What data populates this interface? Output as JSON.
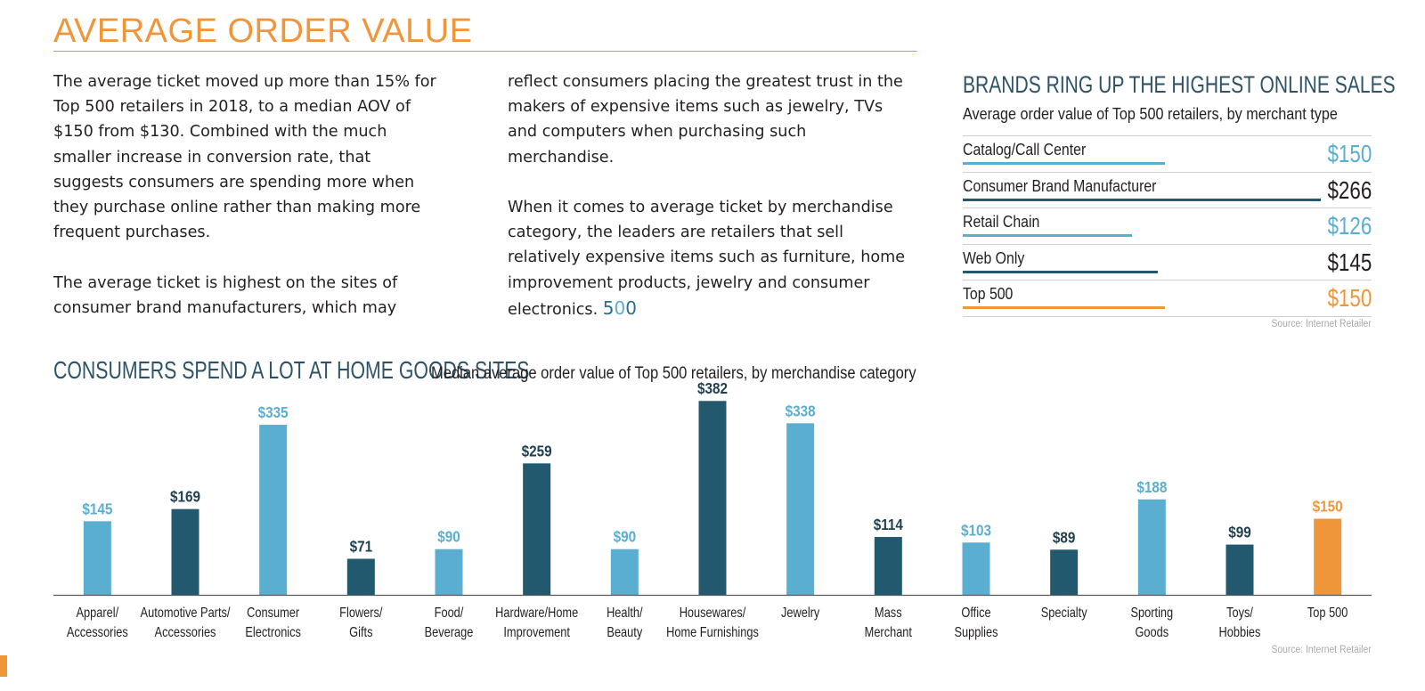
{
  "page": {
    "title": "AVERAGE ORDER VALUE"
  },
  "text": {
    "col1_p1": "The average ticket moved up more than 15% for Top 500 retailers in 2018, to a median AOV of $150 from $130. Combined with the much smaller increase in conversion rate, that suggests consumers are spending more when they purchase online rather than making more frequent purchases.",
    "col1_p2": "The average ticket is highest on the sites of consumer brand manufacturers, which may",
    "col2_p1": "reflect consumers placing the greatest trust in the makers of expensive items such as jewelry, TVs and computers when purchasing such merchandise.",
    "col2_p2": "When it comes to average ticket by merchandise category, the leaders are retailers that sell relatively expensive items such as furniture, home improvement products, jewelry and consumer electronics.",
    "logo": {
      "five": "5",
      "zero1": "0",
      "zero2": "0"
    }
  },
  "brands": {
    "title": "BRANDS RING UP THE HIGHEST ONLINE SALES",
    "subtitle": "Average order value of Top 500 retailers, by merchant type",
    "source": "Source: Internet Retailer",
    "rows": [
      {
        "label": "Catalog/Call Center",
        "value_text": "$150",
        "value": 150,
        "color": "#5aaecf"
      },
      {
        "label": "Consumer Brand Manufacturer",
        "value_text": "$266",
        "value": 266,
        "color": "#22596f"
      },
      {
        "label": "Retail Chain",
        "value_text": "$126",
        "value": 126,
        "color": "#5aaecf"
      },
      {
        "label": "Web Only",
        "value_text": "$145",
        "value": 145,
        "color": "#22596f"
      },
      {
        "label": "Top 500",
        "value_text": "$150",
        "value": 150,
        "color": "#f0963a"
      }
    ]
  },
  "chart_data": {
    "type": "bar",
    "title": "CONSUMERS SPEND A LOT AT HOME GOODS SITES",
    "subtitle": "Median average order value of Top 500 retailers, by merchandise category",
    "source": "Source: Internet Retailer",
    "categories": [
      [
        "Apparel/",
        "Accessories"
      ],
      [
        "Automotive Parts/",
        "Accessories"
      ],
      [
        "Consumer",
        "Electronics"
      ],
      [
        "Flowers/",
        "Gifts"
      ],
      [
        "Food/",
        "Beverage"
      ],
      [
        "Hardware/Home",
        "Improvement"
      ],
      [
        "Health/",
        "Beauty"
      ],
      [
        "Housewares/",
        "Home Furnishings"
      ],
      [
        "Jewelry"
      ],
      [
        "Mass",
        "Merchant"
      ],
      [
        "Office",
        "Supplies"
      ],
      [
        "Specialty"
      ],
      [
        "Sporting",
        "Goods"
      ],
      [
        "Toys/",
        "Hobbies"
      ],
      [
        "Top 500"
      ]
    ],
    "values": [
      145,
      169,
      335,
      71,
      90,
      259,
      90,
      382,
      338,
      114,
      103,
      89,
      188,
      99,
      150
    ],
    "value_labels": [
      "$145",
      "$169",
      "$335",
      "$71",
      "$90",
      "$259",
      "$90",
      "$382",
      "$338",
      "$114",
      "$103",
      "$89",
      "$188",
      "$99",
      "$150"
    ],
    "colors": [
      "#5aaecf",
      "#22596f",
      "#5aaecf",
      "#22596f",
      "#5aaecf",
      "#22596f",
      "#5aaecf",
      "#22596f",
      "#5aaecf",
      "#22596f",
      "#5aaecf",
      "#22596f",
      "#5aaecf",
      "#22596f",
      "#f0963a"
    ],
    "ylim": [
      0,
      400
    ],
    "grid": false,
    "legend": "none"
  }
}
